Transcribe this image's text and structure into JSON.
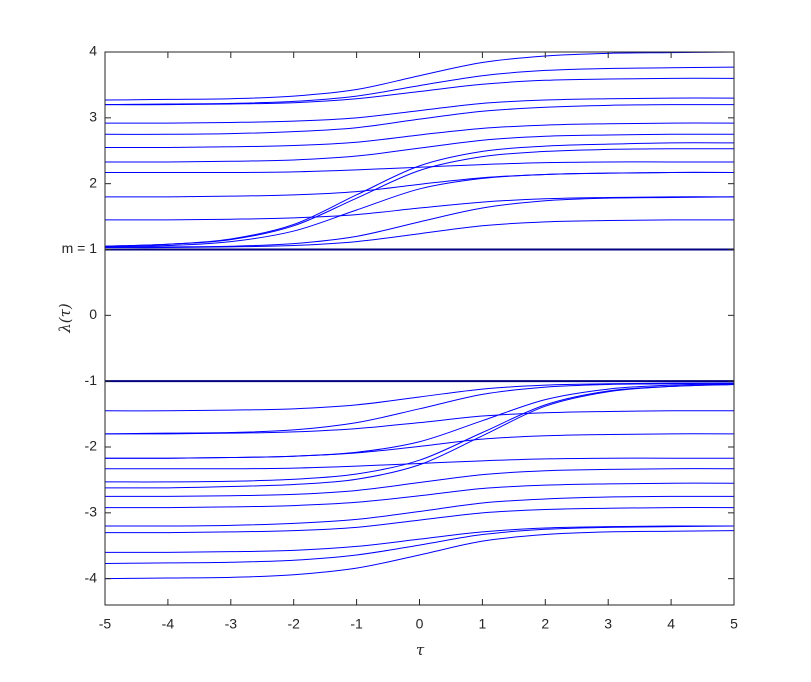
{
  "chart_data": {
    "type": "line",
    "x_label": "τ",
    "y_label": "λ(τ)",
    "x": [
      -5,
      -4,
      -3,
      -2,
      -1,
      0,
      1,
      2,
      3,
      4,
      5
    ],
    "xlim": [
      -5,
      5
    ],
    "xticks": [
      -5,
      -4,
      -3,
      -2,
      -1,
      0,
      1,
      2,
      3,
      4,
      5
    ],
    "ylim": [
      -4.4,
      4
    ],
    "yticks": [
      -4,
      -3,
      -2,
      -1,
      0,
      {
        "value": 1,
        "label": "m = 1"
      },
      2,
      3,
      4
    ],
    "series": [
      {
        "color": "#000080",
        "values": [
          1,
          1,
          1,
          1,
          1,
          1,
          1,
          1,
          1,
          1,
          1
        ]
      },
      {
        "color": "#0000ff",
        "values": [
          1.03,
          1.03,
          1.04,
          1.06,
          1.12,
          1.24,
          1.36,
          1.42,
          1.44,
          1.45,
          1.45
        ]
      },
      {
        "color": "#0000ff",
        "values": [
          1.03,
          1.04,
          1.05,
          1.09,
          1.2,
          1.42,
          1.63,
          1.74,
          1.78,
          1.79,
          1.8
        ]
      },
      {
        "color": "#0000ff",
        "values": [
          1.04,
          1.06,
          1.12,
          1.28,
          1.6,
          1.92,
          2.08,
          2.14,
          2.16,
          2.17,
          2.17
        ]
      },
      {
        "color": "#0000ff",
        "values": [
          1.05,
          1.08,
          1.15,
          1.36,
          1.78,
          2.2,
          2.41,
          2.49,
          2.52,
          2.53,
          2.53
        ]
      },
      {
        "color": "#0000ff",
        "values": [
          1.05,
          1.08,
          1.16,
          1.38,
          1.83,
          2.27,
          2.49,
          2.57,
          2.6,
          2.62,
          2.62
        ]
      },
      {
        "color": "#0000ff",
        "values": [
          1.45,
          1.45,
          1.46,
          1.48,
          1.53,
          1.63,
          1.72,
          1.77,
          1.79,
          1.8,
          1.8
        ]
      },
      {
        "color": "#0000ff",
        "values": [
          1.8,
          1.8,
          1.81,
          1.83,
          1.88,
          1.99,
          2.09,
          2.14,
          2.16,
          2.17,
          2.17
        ]
      },
      {
        "color": "#0000ff",
        "values": [
          2.17,
          2.17,
          2.17,
          2.18,
          2.21,
          2.25,
          2.29,
          2.32,
          2.33,
          2.33,
          2.33
        ]
      },
      {
        "color": "#0000ff",
        "values": [
          2.33,
          2.33,
          2.34,
          2.36,
          2.42,
          2.54,
          2.66,
          2.72,
          2.74,
          2.75,
          2.75
        ]
      },
      {
        "color": "#0000ff",
        "values": [
          2.55,
          2.55,
          2.56,
          2.58,
          2.63,
          2.74,
          2.84,
          2.89,
          2.91,
          2.92,
          2.92
        ]
      },
      {
        "color": "#0000ff",
        "values": [
          2.75,
          2.75,
          2.76,
          2.79,
          2.85,
          2.98,
          3.1,
          3.16,
          3.19,
          3.2,
          3.2
        ]
      },
      {
        "color": "#0000ff",
        "values": [
          2.92,
          2.92,
          2.93,
          2.95,
          3.0,
          3.11,
          3.22,
          3.27,
          3.29,
          3.3,
          3.3
        ]
      },
      {
        "color": "#0000ff",
        "values": [
          3.2,
          3.21,
          3.22,
          3.25,
          3.33,
          3.49,
          3.64,
          3.72,
          3.75,
          3.76,
          3.77
        ]
      },
      {
        "color": "#0000ff",
        "values": [
          3.27,
          3.28,
          3.29,
          3.33,
          3.43,
          3.64,
          3.84,
          3.94,
          3.98,
          3.99,
          4.0
        ]
      },
      {
        "color": "#0000ff",
        "values": [
          3.2,
          3.2,
          3.21,
          3.23,
          3.29,
          3.4,
          3.51,
          3.57,
          3.59,
          3.6,
          3.6
        ]
      },
      {
        "color": "#000080",
        "values": [
          -1,
          -1,
          -1,
          -1,
          -1,
          -1,
          -1,
          -1,
          -1,
          -1,
          -1
        ]
      },
      {
        "color": "#0000ff",
        "values": [
          -1.45,
          -1.45,
          -1.44,
          -1.42,
          -1.36,
          -1.24,
          -1.12,
          -1.06,
          -1.04,
          -1.03,
          -1.03
        ]
      },
      {
        "color": "#0000ff",
        "values": [
          -1.8,
          -1.79,
          -1.78,
          -1.74,
          -1.63,
          -1.42,
          -1.2,
          -1.09,
          -1.05,
          -1.04,
          -1.03
        ]
      },
      {
        "color": "#0000ff",
        "values": [
          -2.17,
          -2.17,
          -2.16,
          -2.14,
          -2.08,
          -1.92,
          -1.6,
          -1.28,
          -1.12,
          -1.06,
          -1.04
        ]
      },
      {
        "color": "#0000ff",
        "values": [
          -2.53,
          -2.53,
          -2.52,
          -2.49,
          -2.41,
          -2.2,
          -1.78,
          -1.36,
          -1.15,
          -1.08,
          -1.05
        ]
      },
      {
        "color": "#0000ff",
        "values": [
          -2.62,
          -2.62,
          -2.6,
          -2.57,
          -2.49,
          -2.27,
          -1.83,
          -1.38,
          -1.16,
          -1.08,
          -1.05
        ]
      },
      {
        "color": "#0000ff",
        "values": [
          -1.8,
          -1.8,
          -1.79,
          -1.77,
          -1.72,
          -1.63,
          -1.53,
          -1.48,
          -1.46,
          -1.45,
          -1.45
        ]
      },
      {
        "color": "#0000ff",
        "values": [
          -2.17,
          -2.17,
          -2.16,
          -2.14,
          -2.09,
          -1.99,
          -1.88,
          -1.83,
          -1.81,
          -1.8,
          -1.8
        ]
      },
      {
        "color": "#0000ff",
        "values": [
          -2.33,
          -2.33,
          -2.33,
          -2.32,
          -2.29,
          -2.25,
          -2.21,
          -2.18,
          -2.17,
          -2.17,
          -2.17
        ]
      },
      {
        "color": "#0000ff",
        "values": [
          -2.75,
          -2.75,
          -2.74,
          -2.72,
          -2.66,
          -2.54,
          -2.42,
          -2.36,
          -2.34,
          -2.33,
          -2.33
        ]
      },
      {
        "color": "#0000ff",
        "values": [
          -2.92,
          -2.92,
          -2.91,
          -2.89,
          -2.84,
          -2.74,
          -2.63,
          -2.58,
          -2.56,
          -2.55,
          -2.55
        ]
      },
      {
        "color": "#0000ff",
        "values": [
          -3.2,
          -3.2,
          -3.19,
          -3.16,
          -3.1,
          -2.98,
          -2.85,
          -2.79,
          -2.76,
          -2.75,
          -2.75
        ]
      },
      {
        "color": "#0000ff",
        "values": [
          -3.3,
          -3.3,
          -3.29,
          -3.27,
          -3.22,
          -3.11,
          -3.0,
          -2.95,
          -2.93,
          -2.92,
          -2.92
        ]
      },
      {
        "color": "#0000ff",
        "values": [
          -3.77,
          -3.76,
          -3.75,
          -3.72,
          -3.64,
          -3.49,
          -3.33,
          -3.25,
          -3.22,
          -3.21,
          -3.2
        ]
      },
      {
        "color": "#0000ff",
        "values": [
          -4.0,
          -3.99,
          -3.98,
          -3.94,
          -3.84,
          -3.64,
          -3.43,
          -3.33,
          -3.29,
          -3.28,
          -3.27
        ]
      },
      {
        "color": "#0000ff",
        "values": [
          -3.6,
          -3.6,
          -3.59,
          -3.57,
          -3.51,
          -3.4,
          -3.29,
          -3.23,
          -3.21,
          -3.2,
          -3.2
        ]
      }
    ]
  }
}
